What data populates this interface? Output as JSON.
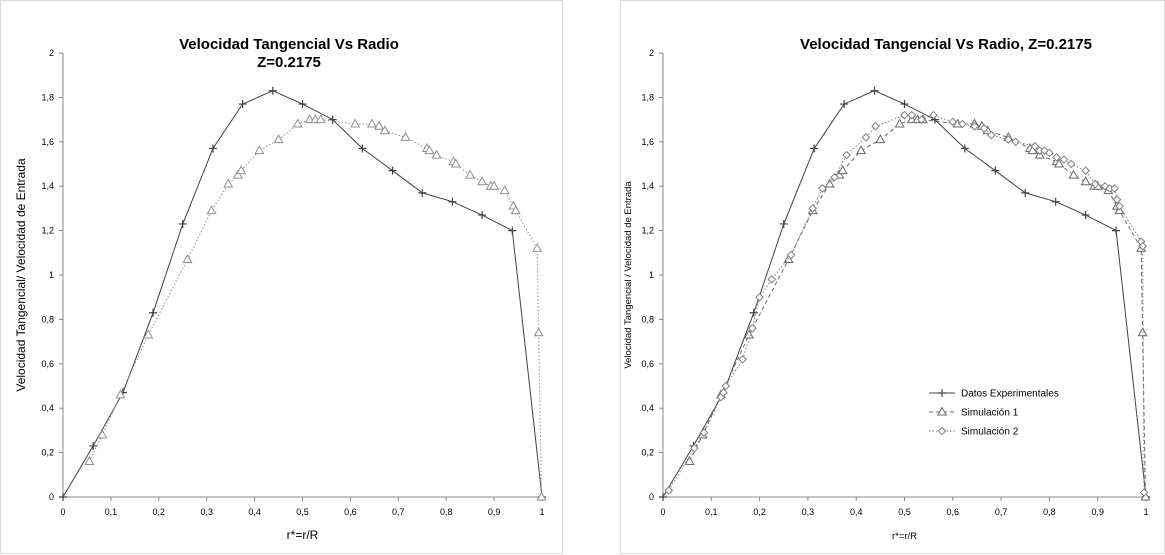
{
  "chart_data": [
    {
      "type": "line",
      "title": "Velocidad Tangencial Vs Radio",
      "subtitle": "Z=0.2175",
      "xlabel": "r*=r/R",
      "ylabel": "Velocidad Tangencial/ Velocidad de Entrada",
      "xlim": [
        0,
        1
      ],
      "ylim": [
        0,
        2
      ],
      "xticks": [
        "0",
        "0,1",
        "0,2",
        "0,3",
        "0,4",
        "0,5",
        "0,6",
        "0,7",
        "0,8",
        "0,9",
        "1"
      ],
      "yticks": [
        "0",
        "0,2",
        "0,4",
        "0,6",
        "0,8",
        "1",
        "1,2",
        "1,4",
        "1,6",
        "1,8",
        "2"
      ],
      "grid": false,
      "legend": "none",
      "series": [
        {
          "marker": "plus",
          "line": "solid",
          "color": "#404040",
          "x": [
            0,
            0.063,
            0.125,
            0.188,
            0.25,
            0.313,
            0.375,
            0.438,
            0.5,
            0.563,
            0.625,
            0.688,
            0.75,
            0.813,
            0.875,
            0.938,
            1.0
          ],
          "y": [
            0,
            0.23,
            0.47,
            0.83,
            1.23,
            1.57,
            1.77,
            1.83,
            1.77,
            1.7,
            1.57,
            1.47,
            1.37,
            1.33,
            1.27,
            1.2,
            0
          ]
        },
        {
          "marker": "triangle",
          "line": "dotted",
          "color": "#909090",
          "x": [
            0.055,
            0.082,
            0.12,
            0.178,
            0.26,
            0.31,
            0.345,
            0.365,
            0.372,
            0.41,
            0.45,
            0.49,
            0.515,
            0.527,
            0.538,
            0.61,
            0.645,
            0.66,
            0.672,
            0.715,
            0.76,
            0.765,
            0.78,
            0.815,
            0.82,
            0.85,
            0.875,
            0.893,
            0.9,
            0.922,
            0.94,
            0.945,
            0.99,
            0.993,
            0.999
          ],
          "y": [
            0.16,
            0.28,
            0.46,
            0.73,
            1.07,
            1.29,
            1.41,
            1.45,
            1.47,
            1.56,
            1.61,
            1.68,
            1.7,
            1.7,
            1.7,
            1.68,
            1.68,
            1.67,
            1.65,
            1.62,
            1.57,
            1.56,
            1.54,
            1.51,
            1.5,
            1.45,
            1.42,
            1.4,
            1.4,
            1.38,
            1.31,
            1.29,
            1.12,
            0.74,
            0
          ]
        }
      ]
    },
    {
      "type": "line",
      "title": "Velocidad Tangencial Vs Radio, Z=0.2175",
      "xlabel": "r*=r/R",
      "ylabel": "Velocidad Tangencial / Velocidad de Entrada",
      "xlim": [
        0,
        1
      ],
      "ylim": [
        0,
        2
      ],
      "xticks": [
        "0",
        "0,1",
        "0,2",
        "0,3",
        "0,4",
        "0,5",
        "0,6",
        "0,7",
        "0,8",
        "0,9",
        "1"
      ],
      "yticks": [
        "0",
        "0,2",
        "0,4",
        "0,6",
        "0,8",
        "1",
        "1,2",
        "1,4",
        "1,6",
        "1,8",
        "2"
      ],
      "grid": false,
      "legend": "lower-right",
      "series": [
        {
          "name": "Datos Experimentales",
          "marker": "plus",
          "line": "solid",
          "color": "#404040",
          "x": [
            0,
            0.063,
            0.125,
            0.188,
            0.25,
            0.313,
            0.375,
            0.438,
            0.5,
            0.563,
            0.625,
            0.688,
            0.75,
            0.813,
            0.875,
            0.938,
            1.0
          ],
          "y": [
            0,
            0.23,
            0.47,
            0.83,
            1.23,
            1.57,
            1.77,
            1.83,
            1.77,
            1.7,
            1.57,
            1.47,
            1.37,
            1.33,
            1.27,
            1.2,
            0
          ]
        },
        {
          "name": "Simulación 1",
          "marker": "triangle",
          "line": "dashed",
          "color": "#6a6a6a",
          "x": [
            0.055,
            0.082,
            0.12,
            0.178,
            0.26,
            0.31,
            0.345,
            0.365,
            0.372,
            0.41,
            0.45,
            0.49,
            0.515,
            0.527,
            0.538,
            0.61,
            0.645,
            0.66,
            0.672,
            0.715,
            0.76,
            0.765,
            0.78,
            0.815,
            0.82,
            0.85,
            0.875,
            0.893,
            0.9,
            0.922,
            0.94,
            0.945,
            0.99,
            0.993,
            0.999
          ],
          "y": [
            0.16,
            0.28,
            0.46,
            0.73,
            1.07,
            1.29,
            1.41,
            1.45,
            1.47,
            1.56,
            1.61,
            1.68,
            1.7,
            1.7,
            1.7,
            1.68,
            1.68,
            1.67,
            1.65,
            1.62,
            1.57,
            1.56,
            1.54,
            1.51,
            1.5,
            1.45,
            1.42,
            1.4,
            1.4,
            1.38,
            1.31,
            1.29,
            1.12,
            0.74,
            0
          ]
        },
        {
          "name": "Simulación 2",
          "marker": "diamond",
          "line": "dotted",
          "color": "#808080",
          "x": [
            0.012,
            0.065,
            0.085,
            0.12,
            0.125,
            0.13,
            0.165,
            0.185,
            0.2,
            0.225,
            0.265,
            0.31,
            0.33,
            0.355,
            0.38,
            0.42,
            0.44,
            0.5,
            0.515,
            0.535,
            0.56,
            0.6,
            0.62,
            0.645,
            0.665,
            0.68,
            0.715,
            0.73,
            0.77,
            0.78,
            0.79,
            0.8,
            0.815,
            0.83,
            0.845,
            0.875,
            0.895,
            0.915,
            0.925,
            0.935,
            0.94,
            0.945,
            0.99,
            0.993,
            0.996
          ],
          "y": [
            0.03,
            0.22,
            0.29,
            0.45,
            0.47,
            0.5,
            0.62,
            0.76,
            0.9,
            0.98,
            1.09,
            1.3,
            1.39,
            1.44,
            1.54,
            1.62,
            1.67,
            1.72,
            1.72,
            1.7,
            1.72,
            1.69,
            1.68,
            1.67,
            1.66,
            1.63,
            1.61,
            1.6,
            1.58,
            1.56,
            1.56,
            1.55,
            1.53,
            1.52,
            1.5,
            1.47,
            1.41,
            1.4,
            1.39,
            1.39,
            1.34,
            1.31,
            1.15,
            1.13,
            0.02
          ]
        }
      ]
    }
  ]
}
